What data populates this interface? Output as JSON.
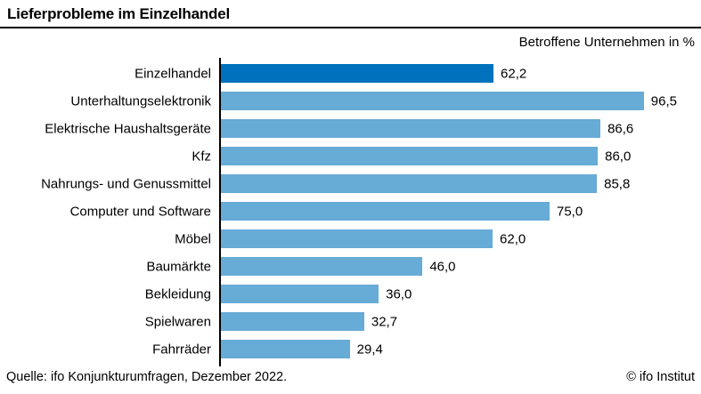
{
  "title": "Lieferprobleme im Einzelhandel",
  "unit_label": "Betroffene Unternehmen in %",
  "footer": {
    "source": "Quelle: ifo Konjunkturumfragen, Dezember 2022.",
    "copyright": "© ifo Institut"
  },
  "colors": {
    "highlight_bar": "#0071bc",
    "default_bar": "#67abd7",
    "axis": "#000000"
  },
  "chart_data": {
    "type": "bar",
    "orientation": "horizontal",
    "title": "Lieferprobleme im Einzelhandel",
    "xlabel": "Betroffene Unternehmen in %",
    "xlim": [
      0,
      100
    ],
    "grid": false,
    "legend": false,
    "categories": [
      "Einzelhandel",
      "Unterhaltungselektronik",
      "Elektrische Haushaltsgeräte",
      "Kfz",
      "Nahrungs- und Genussmittel",
      "Computer und Software",
      "Möbel",
      "Baumärkte",
      "Bekleidung",
      "Spielwaren",
      "Fahrräder"
    ],
    "values": [
      62.2,
      96.5,
      86.6,
      86.0,
      85.8,
      75.0,
      62.0,
      46.0,
      36.0,
      32.7,
      29.4
    ],
    "value_labels": [
      "62,2",
      "96,5",
      "86,6",
      "86,0",
      "85,8",
      "75,0",
      "62,0",
      "46,0",
      "36,0",
      "32,7",
      "29,4"
    ],
    "highlighted_category": "Einzelhandel"
  }
}
